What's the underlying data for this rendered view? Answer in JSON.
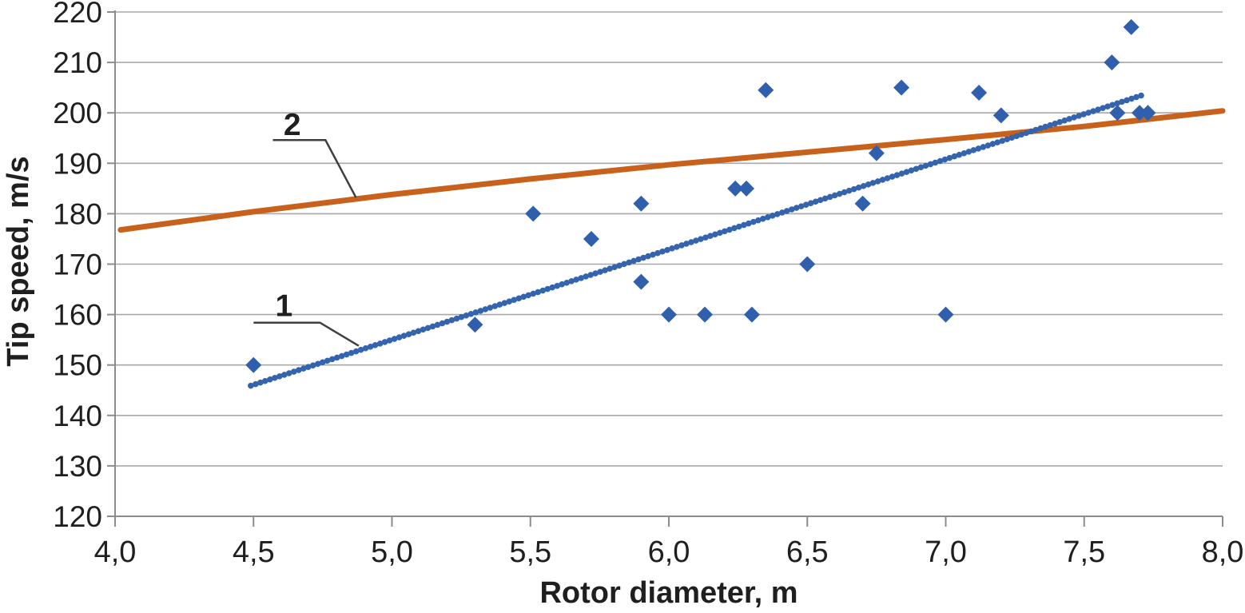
{
  "chart_data": {
    "type": "scatter",
    "title": "",
    "xlabel": "Rotor diameter, m",
    "ylabel": "Tip speed, m/s",
    "xlim": [
      4.0,
      8.0
    ],
    "ylim": [
      120,
      220
    ],
    "grid": "horizontal",
    "legend": "none",
    "decimal_separator": ",",
    "x_ticks": [
      {
        "value": 4.0,
        "label": "4,0"
      },
      {
        "value": 4.5,
        "label": "4,5"
      },
      {
        "value": 5.0,
        "label": "5,0"
      },
      {
        "value": 5.5,
        "label": "5,5"
      },
      {
        "value": 6.0,
        "label": "6,0"
      },
      {
        "value": 6.5,
        "label": "6,5"
      },
      {
        "value": 7.0,
        "label": "7,0"
      },
      {
        "value": 7.5,
        "label": "7,5"
      },
      {
        "value": 8.0,
        "label": "8,0"
      }
    ],
    "y_ticks": [
      {
        "value": 120,
        "label": "120"
      },
      {
        "value": 130,
        "label": "130"
      },
      {
        "value": 140,
        "label": "140"
      },
      {
        "value": 150,
        "label": "150"
      },
      {
        "value": 160,
        "label": "160"
      },
      {
        "value": 170,
        "label": "170"
      },
      {
        "value": 180,
        "label": "180"
      },
      {
        "value": 190,
        "label": "190"
      },
      {
        "value": 200,
        "label": "200"
      },
      {
        "value": 210,
        "label": "210"
      },
      {
        "value": 220,
        "label": "220"
      }
    ],
    "scatter": {
      "name": "tip-speed-data-points",
      "marker": "diamond",
      "marker_size": 20,
      "color": "#2F5FAD",
      "points": [
        [
          4.5,
          150
        ],
        [
          5.3,
          158
        ],
        [
          5.51,
          180
        ],
        [
          5.72,
          175
        ],
        [
          5.9,
          182
        ],
        [
          5.9,
          166.5
        ],
        [
          6.0,
          160
        ],
        [
          6.13,
          160
        ],
        [
          6.24,
          185
        ],
        [
          6.28,
          185
        ],
        [
          6.3,
          160
        ],
        [
          6.35,
          204.5
        ],
        [
          6.5,
          170
        ],
        [
          6.7,
          182
        ],
        [
          6.75,
          192
        ],
        [
          6.84,
          205
        ],
        [
          7.0,
          160
        ],
        [
          7.12,
          204
        ],
        [
          7.2,
          199.5
        ],
        [
          7.6,
          210
        ],
        [
          7.62,
          200
        ],
        [
          7.67,
          217
        ],
        [
          7.7,
          200
        ],
        [
          7.73,
          200
        ]
      ]
    },
    "series": [
      {
        "name": "1",
        "kind": "linear-trend",
        "style": "beaded",
        "color": "#3464AE",
        "width": 7.5,
        "points": [
          [
            4.49,
            145.9
          ],
          [
            7.72,
            203.7
          ]
        ]
      },
      {
        "name": "2",
        "kind": "logarithmic-trend",
        "style": "solid",
        "color": "#C8611C",
        "width": 7,
        "points": [
          [
            4.02,
            176.8
          ],
          [
            4.5,
            180.4
          ],
          [
            5.0,
            183.8
          ],
          [
            5.5,
            186.9
          ],
          [
            6.0,
            189.7
          ],
          [
            6.5,
            192.2
          ],
          [
            7.0,
            194.7
          ],
          [
            7.5,
            197.3
          ],
          [
            8.0,
            200.4
          ]
        ]
      }
    ],
    "annotations": [
      {
        "label": "1",
        "target_series": "1",
        "label_xy": [
          4.61,
          161.9
        ],
        "leader": [
          [
            4.5,
            158.4
          ],
          [
            4.74,
            158.4
          ],
          [
            4.88,
            153.8
          ]
        ]
      },
      {
        "label": "2",
        "target_series": "2",
        "label_xy": [
          4.64,
          197.8
        ],
        "leader": [
          [
            4.57,
            194.6
          ],
          [
            4.76,
            194.6
          ],
          [
            4.87,
            183.2
          ]
        ]
      }
    ],
    "colors": {
      "points": "#2F5FAD",
      "trend_line_1": "#3464AE",
      "trend_line_2": "#C8611C",
      "gridline": "#A8A8A8",
      "axis": "#8C8C8C",
      "leader": "#3F3F3F",
      "text": "#1F1F1F",
      "background": "#FFFFFF"
    }
  }
}
